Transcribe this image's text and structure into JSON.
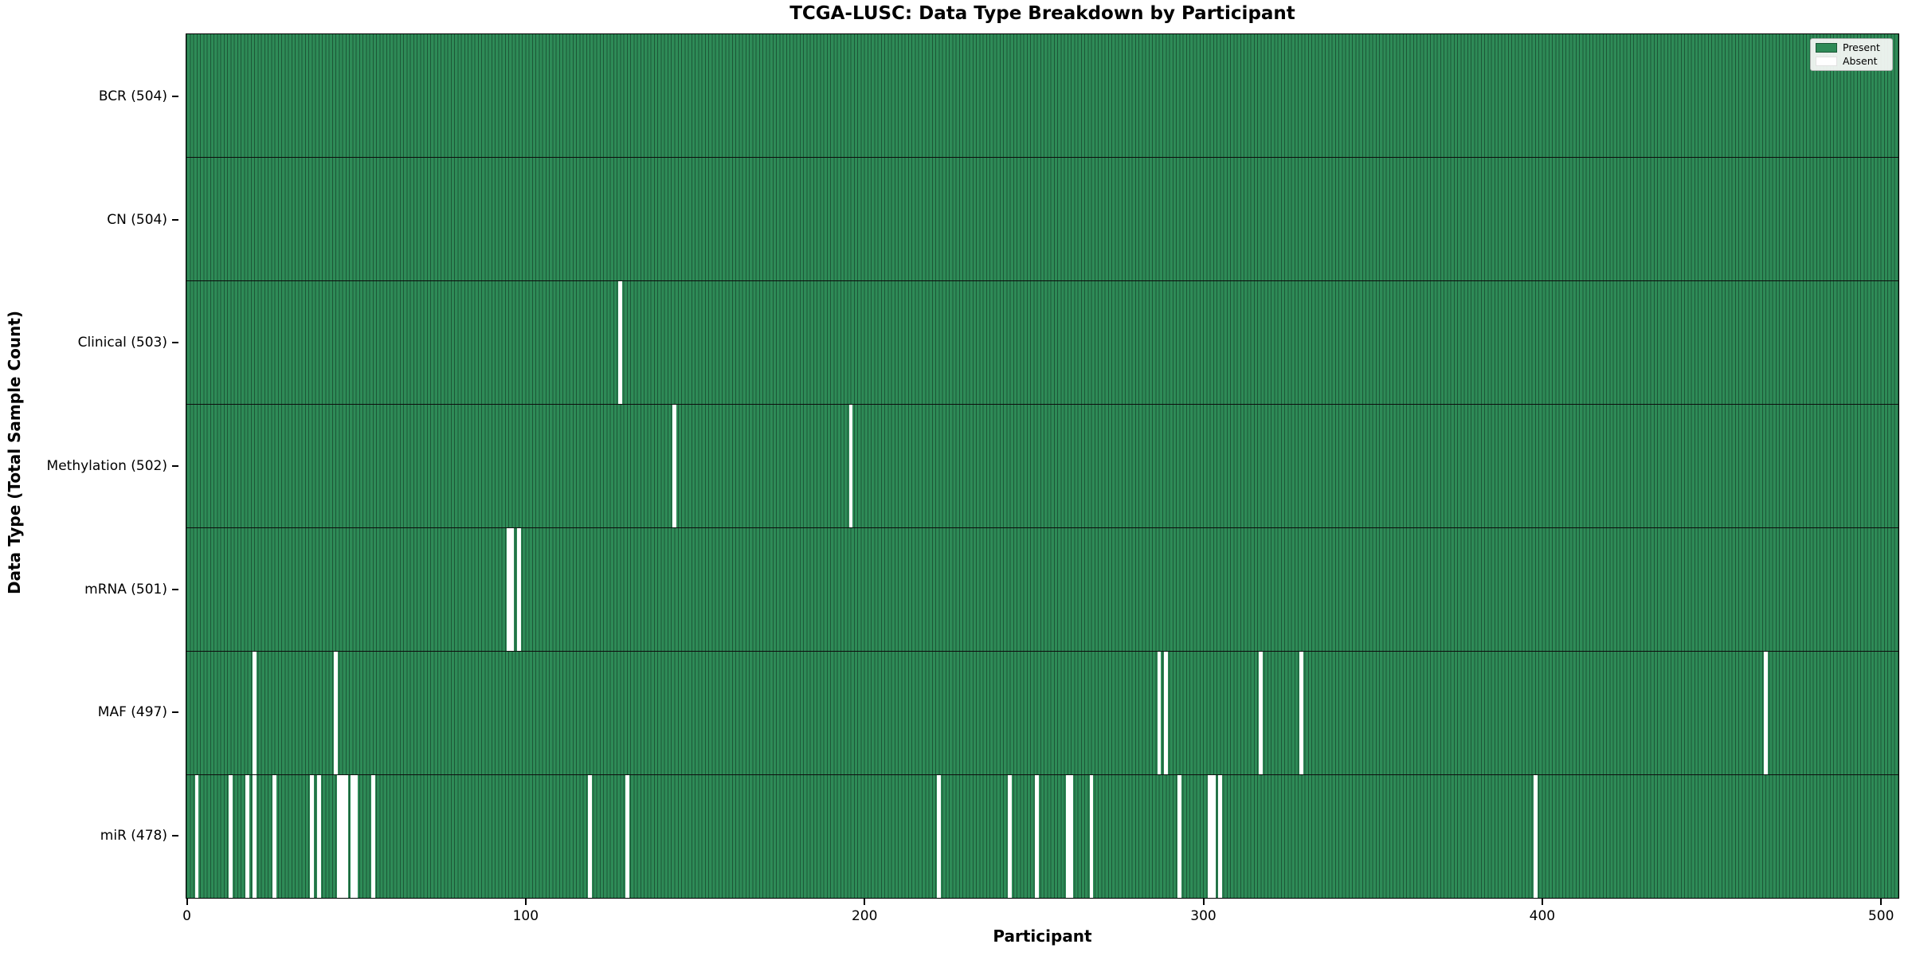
{
  "figure": {
    "title": "TCGA-LUSC: Data Type Breakdown by Participant",
    "xlabel": "Participant",
    "ylabel": "Data Type (Total Sample Count)"
  },
  "legend": {
    "present_label": "Present",
    "absent_label": "Absent"
  },
  "colors": {
    "present": "#2e8b57",
    "absent": "#ffffff",
    "bar_edge": "#1c5737",
    "row_separator": "#0d0d0d",
    "plot_border": "#000000"
  },
  "chart_data": {
    "type": "heatmap",
    "title": "TCGA-LUSC: Data Type Breakdown by Participant",
    "xlabel": "Participant",
    "ylabel": "Data Type (Total Sample Count)",
    "x_ticks": [
      0,
      100,
      200,
      300,
      400,
      500
    ],
    "xlim": [
      0,
      505
    ],
    "n_participants": 504,
    "legend_position": "upper right",
    "legend_entries": [
      "Present",
      "Absent"
    ],
    "rows": [
      {
        "label": "BCR (504)",
        "data_type": "BCR",
        "total_sample_count": 504,
        "absent_participants": []
      },
      {
        "label": "CN (504)",
        "data_type": "CN",
        "total_sample_count": 504,
        "absent_participants": []
      },
      {
        "label": "Clinical (503)",
        "data_type": "Clinical",
        "total_sample_count": 503,
        "absent_participants": [
          128
        ]
      },
      {
        "label": "Methylation (502)",
        "data_type": "Methylation",
        "total_sample_count": 502,
        "absent_participants": [
          144,
          196
        ]
      },
      {
        "label": "mRNA (501)",
        "data_type": "mRNA",
        "total_sample_count": 501,
        "absent_participants": [
          95,
          96,
          98
        ]
      },
      {
        "label": "MAF (497)",
        "data_type": "MAF",
        "total_sample_count": 497,
        "absent_participants": [
          20,
          44,
          287,
          289,
          317,
          329,
          466
        ]
      },
      {
        "label": "miR (478)",
        "data_type": "miR",
        "total_sample_count": 478,
        "absent_participants": [
          3,
          13,
          18,
          20,
          26,
          37,
          39,
          45,
          46,
          47,
          49,
          50,
          55,
          119,
          130,
          222,
          243,
          251,
          260,
          261,
          267,
          293,
          302,
          303,
          305,
          398
        ]
      }
    ]
  }
}
